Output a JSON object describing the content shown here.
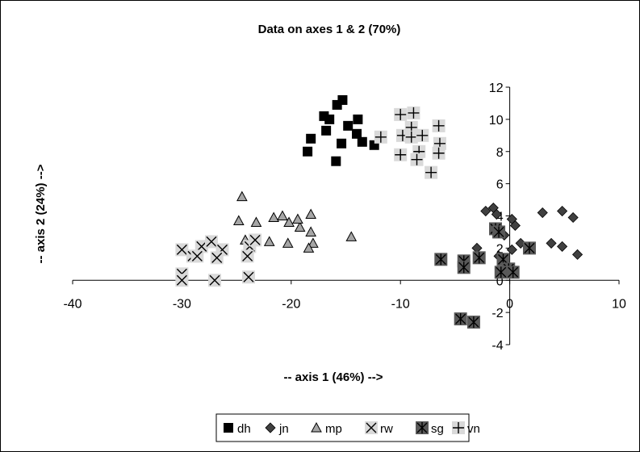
{
  "chart_data": {
    "type": "scatter",
    "title": "Data on axes  1 & 2 (70%)",
    "xlabel": "-- axis 1 (46%) -->",
    "ylabel": "-- axis 2 (24%) -->",
    "xlim": [
      -40,
      10
    ],
    "ylim": [
      -4,
      12
    ],
    "x_ticks": [
      -40,
      -30,
      -20,
      -10,
      0,
      10
    ],
    "y_ticks": [
      -4,
      -2,
      0,
      2,
      4,
      6,
      8,
      10,
      12
    ],
    "axes_cross_at_origin": true,
    "grid": false,
    "legend_position": "bottom",
    "series": [
      {
        "name": "dh",
        "marker": "square",
        "color": "#000000",
        "points": [
          [
            -17.0,
            10.2
          ],
          [
            -16.5,
            10.0
          ],
          [
            -15.8,
            10.9
          ],
          [
            -15.3,
            11.2
          ],
          [
            -14.8,
            9.6
          ],
          [
            -13.9,
            10.0
          ],
          [
            -16.8,
            9.3
          ],
          [
            -14.0,
            9.1
          ],
          [
            -13.5,
            8.6
          ],
          [
            -18.2,
            8.8
          ],
          [
            -18.5,
            8.0
          ],
          [
            -15.4,
            8.5
          ],
          [
            -12.4,
            8.4
          ],
          [
            -15.9,
            7.4
          ]
        ]
      },
      {
        "name": "jn",
        "marker": "diamond",
        "color": "#000000",
        "points": [
          [
            -1.5,
            4.5
          ],
          [
            -2.2,
            4.3
          ],
          [
            -1.2,
            4.1
          ],
          [
            0.2,
            3.8
          ],
          [
            0.5,
            3.4
          ],
          [
            3.0,
            4.2
          ],
          [
            4.8,
            4.3
          ],
          [
            5.8,
            3.9
          ],
          [
            -0.5,
            2.8
          ],
          [
            1.0,
            2.3
          ],
          [
            3.8,
            2.3
          ],
          [
            4.8,
            2.1
          ],
          [
            -3.0,
            2.0
          ],
          [
            0.2,
            1.9
          ],
          [
            6.2,
            1.6
          ],
          [
            -1.0,
            1.5
          ]
        ]
      },
      {
        "name": "mp",
        "marker": "triangle",
        "color": "#a6a6a6",
        "points": [
          [
            -24.5,
            5.2
          ],
          [
            -24.8,
            3.7
          ],
          [
            -23.2,
            3.6
          ],
          [
            -20.8,
            4.0
          ],
          [
            -21.6,
            3.9
          ],
          [
            -20.2,
            3.6
          ],
          [
            -19.2,
            3.3
          ],
          [
            -18.2,
            4.1
          ],
          [
            -19.4,
            3.8
          ],
          [
            -18.2,
            3.0
          ],
          [
            -24.2,
            2.5
          ],
          [
            -22.0,
            2.4
          ],
          [
            -20.3,
            2.3
          ],
          [
            -18.0,
            2.3
          ],
          [
            -18.4,
            2.0
          ],
          [
            -14.5,
            2.7
          ]
        ]
      },
      {
        "name": "rw",
        "marker": "cross",
        "color": "#d9d9d9",
        "points": [
          [
            -30.0,
            1.9
          ],
          [
            -29.0,
            1.5
          ],
          [
            -28.2,
            2.1
          ],
          [
            -27.3,
            2.4
          ],
          [
            -26.3,
            1.9
          ],
          [
            -26.8,
            1.4
          ],
          [
            -28.6,
            1.5
          ],
          [
            -23.8,
            2.1
          ],
          [
            -23.3,
            2.5
          ],
          [
            -24.0,
            1.5
          ],
          [
            -30.0,
            0.4
          ],
          [
            -30.0,
            0.0
          ],
          [
            -27.0,
            0.0
          ],
          [
            -23.9,
            0.2
          ]
        ]
      },
      {
        "name": "sg",
        "marker": "asterisk",
        "color": "#595959",
        "points": [
          [
            -6.3,
            1.3
          ],
          [
            -4.2,
            1.2
          ],
          [
            -4.2,
            0.8
          ],
          [
            -2.8,
            1.4
          ],
          [
            -1.3,
            3.2
          ],
          [
            -1.0,
            3.0
          ],
          [
            1.8,
            2.0
          ],
          [
            -0.6,
            1.3
          ],
          [
            -0.1,
            0.7
          ],
          [
            -0.8,
            0.5
          ],
          [
            0.3,
            0.5
          ],
          [
            -4.5,
            -2.4
          ],
          [
            -3.3,
            -2.6
          ]
        ]
      },
      {
        "name": "vn",
        "marker": "plus",
        "color": "#d9d9d9",
        "points": [
          [
            -10.0,
            10.3
          ],
          [
            -8.8,
            10.4
          ],
          [
            -9.0,
            9.5
          ],
          [
            -6.5,
            9.6
          ],
          [
            -9.8,
            9.0
          ],
          [
            -9.0,
            8.9
          ],
          [
            -8.0,
            9.0
          ],
          [
            -11.8,
            8.9
          ],
          [
            -6.4,
            8.5
          ],
          [
            -8.3,
            8.0
          ],
          [
            -10.0,
            7.8
          ],
          [
            -8.5,
            7.5
          ],
          [
            -6.5,
            7.9
          ],
          [
            -7.2,
            6.7
          ]
        ]
      }
    ]
  }
}
